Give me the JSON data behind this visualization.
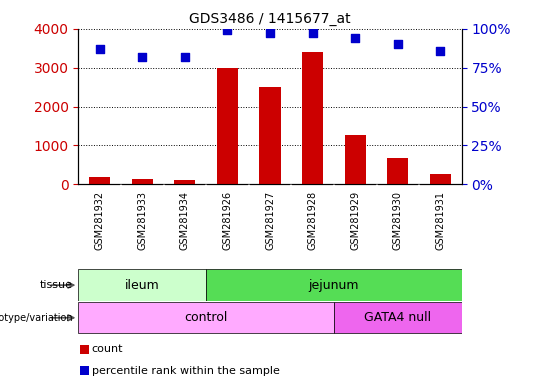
{
  "title": "GDS3486 / 1415677_at",
  "samples": [
    "GSM281932",
    "GSM281933",
    "GSM281934",
    "GSM281926",
    "GSM281927",
    "GSM281928",
    "GSM281929",
    "GSM281930",
    "GSM281931"
  ],
  "counts": [
    200,
    130,
    120,
    3000,
    2500,
    3400,
    1280,
    680,
    270
  ],
  "percentile_ranks": [
    87,
    82,
    82,
    99,
    97,
    97,
    94,
    90,
    86
  ],
  "bar_color": "#cc0000",
  "dot_color": "#0000cc",
  "ylim_left": [
    0,
    4000
  ],
  "ylim_right": [
    0,
    100
  ],
  "yticks_left": [
    0,
    1000,
    2000,
    3000,
    4000
  ],
  "yticks_right": [
    0,
    25,
    50,
    75,
    100
  ],
  "tissue_labels": [
    {
      "label": "ileum",
      "span": [
        0,
        3
      ],
      "color": "#ccffcc"
    },
    {
      "label": "jejunum",
      "span": [
        3,
        9
      ],
      "color": "#55dd55"
    }
  ],
  "genotype_labels": [
    {
      "label": "control",
      "span": [
        0,
        6
      ],
      "color": "#ffaaff"
    },
    {
      "label": "GATA4 null",
      "span": [
        6,
        9
      ],
      "color": "#ee66ee"
    }
  ],
  "legend_count_label": "count",
  "legend_pct_label": "percentile rank within the sample",
  "bg_color": "#ffffff",
  "xtick_bg_color": "#d0d0d0",
  "grid_color": "#000000",
  "tick_color_left": "#cc0000",
  "tick_color_right": "#0000cc"
}
